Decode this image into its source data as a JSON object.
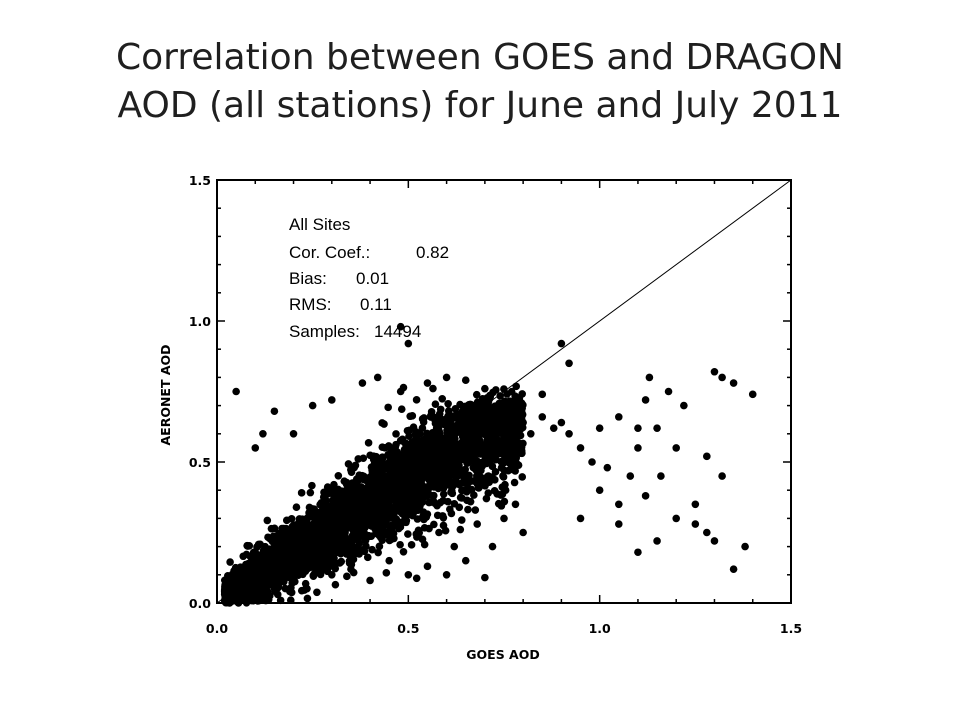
{
  "slide": {
    "title_line1": "Correlation between GOES and DRAGON",
    "title_line2": "AOD (all stations) for June and July 2011"
  },
  "chart_data": {
    "type": "scatter",
    "title": "",
    "xlabel": "GOES AOD",
    "ylabel": "AERONET AOD",
    "xlim": [
      0.0,
      1.5
    ],
    "ylim": [
      0.0,
      1.5
    ],
    "xticks": [
      "0.0",
      "0.5",
      "1.0",
      "1.5"
    ],
    "yticks": [
      "0.0",
      "0.5",
      "1.0",
      "1.5"
    ],
    "grid": false,
    "reference_line": "1:1",
    "annotation": {
      "header": "All Sites",
      "corr_label": "Cor. Coef.:",
      "corr_value": "0.82",
      "bias_label": "Bias:",
      "bias_value": "0.01",
      "rms_label": "RMS:",
      "rms_value": "0.11",
      "samples_label": "Samples:",
      "samples_value": "14494"
    },
    "series": [
      {
        "points": [
          [
            0.02,
            0.04
          ],
          [
            0.04,
            0.06
          ],
          [
            0.06,
            0.05
          ],
          [
            0.08,
            0.1
          ],
          [
            0.1,
            0.08
          ],
          [
            0.12,
            0.14
          ],
          [
            0.14,
            0.12
          ],
          [
            0.16,
            0.18
          ],
          [
            0.18,
            0.15
          ],
          [
            0.2,
            0.22
          ],
          [
            0.22,
            0.2
          ],
          [
            0.25,
            0.26
          ],
          [
            0.28,
            0.3
          ],
          [
            0.3,
            0.27
          ],
          [
            0.32,
            0.35
          ],
          [
            0.35,
            0.33
          ],
          [
            0.38,
            0.4
          ],
          [
            0.4,
            0.38
          ],
          [
            0.42,
            0.45
          ],
          [
            0.45,
            0.42
          ],
          [
            0.48,
            0.5
          ],
          [
            0.5,
            0.47
          ],
          [
            0.52,
            0.53
          ],
          [
            0.55,
            0.52
          ],
          [
            0.58,
            0.55
          ],
          [
            0.6,
            0.57
          ],
          [
            0.62,
            0.6
          ],
          [
            0.65,
            0.58
          ],
          [
            0.68,
            0.62
          ],
          [
            0.7,
            0.6
          ],
          [
            0.72,
            0.62
          ],
          [
            0.75,
            0.65
          ],
          [
            0.78,
            0.66
          ],
          [
            0.8,
            0.64
          ],
          [
            0.82,
            0.6
          ],
          [
            0.85,
            0.66
          ],
          [
            0.88,
            0.62
          ],
          [
            0.9,
            0.64
          ],
          [
            0.92,
            0.6
          ],
          [
            0.95,
            0.55
          ],
          [
            0.05,
            0.75
          ],
          [
            0.1,
            0.55
          ],
          [
            0.12,
            0.6
          ],
          [
            0.15,
            0.68
          ],
          [
            0.2,
            0.6
          ],
          [
            0.25,
            0.7
          ],
          [
            0.3,
            0.72
          ],
          [
            0.38,
            0.78
          ],
          [
            0.42,
            0.8
          ],
          [
            0.48,
            0.75
          ],
          [
            0.55,
            0.78
          ],
          [
            0.6,
            0.8
          ],
          [
            0.65,
            0.79
          ],
          [
            0.7,
            0.76
          ],
          [
            0.78,
            0.72
          ],
          [
            0.85,
            0.74
          ],
          [
            0.9,
            0.92
          ],
          [
            0.92,
            0.85
          ],
          [
            0.5,
            0.92
          ],
          [
            0.48,
            0.98
          ],
          [
            0.3,
            0.1
          ],
          [
            0.35,
            0.12
          ],
          [
            0.4,
            0.08
          ],
          [
            0.45,
            0.15
          ],
          [
            0.5,
            0.1
          ],
          [
            0.55,
            0.13
          ],
          [
            0.6,
            0.1
          ],
          [
            0.65,
            0.15
          ],
          [
            0.7,
            0.09
          ],
          [
            0.72,
            0.2
          ],
          [
            0.8,
            0.25
          ],
          [
            0.75,
            0.3
          ],
          [
            0.62,
            0.2
          ],
          [
            0.58,
            0.25
          ],
          [
            0.68,
            0.28
          ],
          [
            0.78,
            0.35
          ],
          [
            0.95,
            0.3
          ],
          [
            1.0,
            0.4
          ],
          [
            1.02,
            0.48
          ],
          [
            1.05,
            0.28
          ],
          [
            1.08,
            0.45
          ],
          [
            1.1,
            0.55
          ],
          [
            1.12,
            0.72
          ],
          [
            1.13,
            0.8
          ],
          [
            1.15,
            0.62
          ],
          [
            1.18,
            0.75
          ],
          [
            1.2,
            0.55
          ],
          [
            1.22,
            0.7
          ],
          [
            1.25,
            0.35
          ],
          [
            1.28,
            0.52
          ],
          [
            1.3,
            0.82
          ],
          [
            1.32,
            0.8
          ],
          [
            1.35,
            0.78
          ],
          [
            1.4,
            0.74
          ],
          [
            1.3,
            0.22
          ],
          [
            1.35,
            0.12
          ],
          [
            1.38,
            0.2
          ],
          [
            1.15,
            0.22
          ],
          [
            1.25,
            0.28
          ],
          [
            1.1,
            0.18
          ],
          [
            1.05,
            0.35
          ],
          [
            0.98,
            0.5
          ],
          [
            1.0,
            0.62
          ],
          [
            1.05,
            0.66
          ],
          [
            1.1,
            0.62
          ],
          [
            1.32,
            0.45
          ],
          [
            1.2,
            0.3
          ],
          [
            1.16,
            0.45
          ],
          [
            1.12,
            0.38
          ],
          [
            1.28,
            0.25
          ]
        ]
      }
    ]
  }
}
